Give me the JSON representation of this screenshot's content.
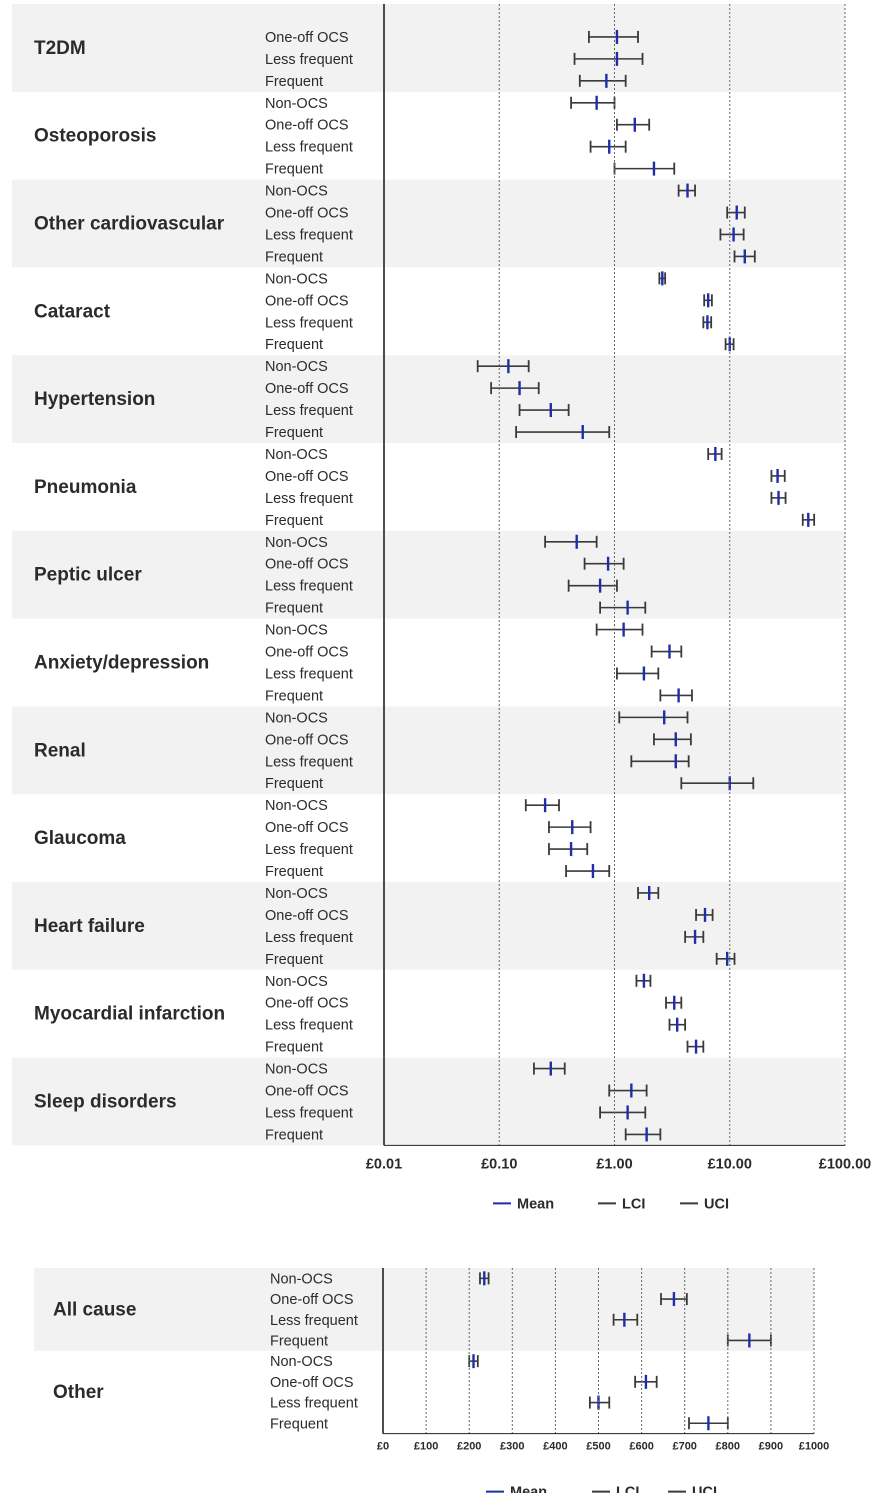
{
  "chart_data": [
    {
      "type": "forest",
      "scale": "log",
      "xlim": [
        0.01,
        100
      ],
      "x_ticks": [
        "£0.01",
        "£0.10",
        "£1.00",
        "£10.00",
        "£100.00"
      ],
      "x_tick_values": [
        0.01,
        0.1,
        1,
        10,
        100
      ],
      "legend": [
        "Mean",
        "LCI",
        "UCI"
      ],
      "legend_position": "bottom",
      "groups": [
        {
          "name": "T2DM",
          "rows": [
            {
              "label": "One-off OCS",
              "mean": 1.05,
              "lci": 0.6,
              "uci": 1.6
            },
            {
              "label": "Less frequent",
              "mean": 1.05,
              "lci": 0.45,
              "uci": 1.75
            },
            {
              "label": "Frequent",
              "mean": 0.85,
              "lci": 0.5,
              "uci": 1.25
            }
          ]
        },
        {
          "name": "Osteoporosis",
          "rows": [
            {
              "label": "Non-OCS",
              "mean": 0.7,
              "lci": 0.42,
              "uci": 1.0
            },
            {
              "label": "One-off OCS",
              "mean": 1.5,
              "lci": 1.05,
              "uci": 2.0
            },
            {
              "label": "Less frequent",
              "mean": 0.9,
              "lci": 0.62,
              "uci": 1.25
            },
            {
              "label": "Frequent",
              "mean": 2.2,
              "lci": 1.0,
              "uci": 3.3
            }
          ]
        },
        {
          "name": "Other cardiovascular",
          "rows": [
            {
              "label": "Non-OCS",
              "mean": 4.3,
              "lci": 3.6,
              "uci": 5.0
            },
            {
              "label": "One-off OCS",
              "mean": 11.5,
              "lci": 9.5,
              "uci": 13.5
            },
            {
              "label": "Less frequent",
              "mean": 10.8,
              "lci": 8.3,
              "uci": 13.2
            },
            {
              "label": "Frequent",
              "mean": 13.5,
              "lci": 11.0,
              "uci": 16.5
            }
          ]
        },
        {
          "name": "Cataract",
          "rows": [
            {
              "label": "Non-OCS",
              "mean": 2.6,
              "lci": 2.45,
              "uci": 2.75
            },
            {
              "label": "One-off OCS",
              "mean": 6.5,
              "lci": 6.0,
              "uci": 7.0
            },
            {
              "label": "Less frequent",
              "mean": 6.4,
              "lci": 5.9,
              "uci": 6.9
            },
            {
              "label": "Frequent",
              "mean": 10.0,
              "lci": 9.2,
              "uci": 10.8
            }
          ]
        },
        {
          "name": "Hypertension",
          "rows": [
            {
              "label": "Non-OCS",
              "mean": 0.12,
              "lci": 0.065,
              "uci": 0.18
            },
            {
              "label": "One-off OCS",
              "mean": 0.15,
              "lci": 0.085,
              "uci": 0.22
            },
            {
              "label": "Less frequent",
              "mean": 0.28,
              "lci": 0.15,
              "uci": 0.4
            },
            {
              "label": "Frequent",
              "mean": 0.53,
              "lci": 0.14,
              "uci": 0.9
            }
          ]
        },
        {
          "name": "Pneumonia",
          "rows": [
            {
              "label": "Non-OCS",
              "mean": 7.5,
              "lci": 6.5,
              "uci": 8.5
            },
            {
              "label": "One-off OCS",
              "mean": 26.0,
              "lci": 23.0,
              "uci": 30.0
            },
            {
              "label": "Less frequent",
              "mean": 26.5,
              "lci": 23.0,
              "uci": 30.5
            },
            {
              "label": "Frequent",
              "mean": 48.0,
              "lci": 43.0,
              "uci": 54.0
            }
          ]
        },
        {
          "name": "Peptic ulcer",
          "rows": [
            {
              "label": "Non-OCS",
              "mean": 0.47,
              "lci": 0.25,
              "uci": 0.7
            },
            {
              "label": "One-off OCS",
              "mean": 0.88,
              "lci": 0.55,
              "uci": 1.2
            },
            {
              "label": "Less frequent",
              "mean": 0.75,
              "lci": 0.4,
              "uci": 1.05
            },
            {
              "label": "Frequent",
              "mean": 1.3,
              "lci": 0.75,
              "uci": 1.85
            }
          ]
        },
        {
          "name": "Anxiety/depression",
          "rows": [
            {
              "label": "Non-OCS",
              "mean": 1.2,
              "lci": 0.7,
              "uci": 1.75
            },
            {
              "label": "One-off OCS",
              "mean": 3.0,
              "lci": 2.1,
              "uci": 3.8
            },
            {
              "label": "Less frequent",
              "mean": 1.8,
              "lci": 1.05,
              "uci": 2.4
            },
            {
              "label": "Frequent",
              "mean": 3.6,
              "lci": 2.5,
              "uci": 4.7
            }
          ]
        },
        {
          "name": "Renal",
          "rows": [
            {
              "label": "Non-OCS",
              "mean": 2.7,
              "lci": 1.1,
              "uci": 4.3
            },
            {
              "label": "One-off OCS",
              "mean": 3.4,
              "lci": 2.2,
              "uci": 4.6
            },
            {
              "label": "Less frequent",
              "mean": 3.4,
              "lci": 1.4,
              "uci": 4.4
            },
            {
              "label": "Frequent",
              "mean": 10.0,
              "lci": 3.8,
              "uci": 16.0
            }
          ]
        },
        {
          "name": "Glaucoma",
          "rows": [
            {
              "label": "Non-OCS",
              "mean": 0.25,
              "lci": 0.17,
              "uci": 0.33
            },
            {
              "label": "One-off OCS",
              "mean": 0.43,
              "lci": 0.27,
              "uci": 0.62
            },
            {
              "label": "Less frequent",
              "mean": 0.42,
              "lci": 0.27,
              "uci": 0.58
            },
            {
              "label": "Frequent",
              "mean": 0.65,
              "lci": 0.38,
              "uci": 0.9
            }
          ]
        },
        {
          "name": "Heart failure",
          "rows": [
            {
              "label": "Non-OCS",
              "mean": 2.0,
              "lci": 1.6,
              "uci": 2.4
            },
            {
              "label": "One-off OCS",
              "mean": 6.1,
              "lci": 5.1,
              "uci": 7.1
            },
            {
              "label": "Less frequent",
              "mean": 5.0,
              "lci": 4.1,
              "uci": 5.9
            },
            {
              "label": "Frequent",
              "mean": 9.5,
              "lci": 7.7,
              "uci": 11.0
            }
          ]
        },
        {
          "name": "Myocardial infarction",
          "rows": [
            {
              "label": "Non-OCS",
              "mean": 1.8,
              "lci": 1.55,
              "uci": 2.05
            },
            {
              "label": "One-off OCS",
              "mean": 3.3,
              "lci": 2.8,
              "uci": 3.8
            },
            {
              "label": "Less frequent",
              "mean": 3.5,
              "lci": 3.0,
              "uci": 4.1
            },
            {
              "label": "Frequent",
              "mean": 5.1,
              "lci": 4.3,
              "uci": 5.9
            }
          ]
        },
        {
          "name": "Sleep disorders",
          "rows": [
            {
              "label": "Non-OCS",
              "mean": 0.28,
              "lci": 0.2,
              "uci": 0.37
            },
            {
              "label": "One-off OCS",
              "mean": 1.4,
              "lci": 0.9,
              "uci": 1.9
            },
            {
              "label": "Less frequent",
              "mean": 1.3,
              "lci": 0.75,
              "uci": 1.85
            },
            {
              "label": "Frequent",
              "mean": 1.9,
              "lci": 1.25,
              "uci": 2.5
            }
          ]
        }
      ]
    },
    {
      "type": "forest",
      "scale": "linear",
      "xlim": [
        0,
        1000
      ],
      "x_ticks": [
        "£0",
        "£100",
        "£200",
        "£300",
        "£400",
        "£500",
        "£600",
        "£700",
        "£800",
        "£900",
        "£1000"
      ],
      "x_tick_values": [
        0,
        100,
        200,
        300,
        400,
        500,
        600,
        700,
        800,
        900,
        1000
      ],
      "legend": [
        "Mean",
        "LCI",
        "UCI"
      ],
      "legend_position": "bottom",
      "groups": [
        {
          "name": "All cause",
          "rows": [
            {
              "label": "Non-OCS",
              "mean": 235,
              "lci": 225,
              "uci": 245
            },
            {
              "label": "One-off OCS",
              "mean": 675,
              "lci": 645,
              "uci": 705
            },
            {
              "label": "Less frequent",
              "mean": 560,
              "lci": 535,
              "uci": 590
            },
            {
              "label": "Frequent",
              "mean": 850,
              "lci": 800,
              "uci": 900
            }
          ]
        },
        {
          "name": "Other",
          "rows": [
            {
              "label": "Non-OCS",
              "mean": 210,
              "lci": 200,
              "uci": 220
            },
            {
              "label": "One-off OCS",
              "mean": 610,
              "lci": 585,
              "uci": 635
            },
            {
              "label": "Less frequent",
              "mean": 500,
              "lci": 480,
              "uci": 525
            },
            {
              "label": "Frequent",
              "mean": 755,
              "lci": 710,
              "uci": 800
            }
          ]
        }
      ]
    }
  ],
  "colors": {
    "mean": "#1f2ea8",
    "ci": "#3a3a3a",
    "band": "#f2f2f2",
    "grid": "#666666"
  }
}
